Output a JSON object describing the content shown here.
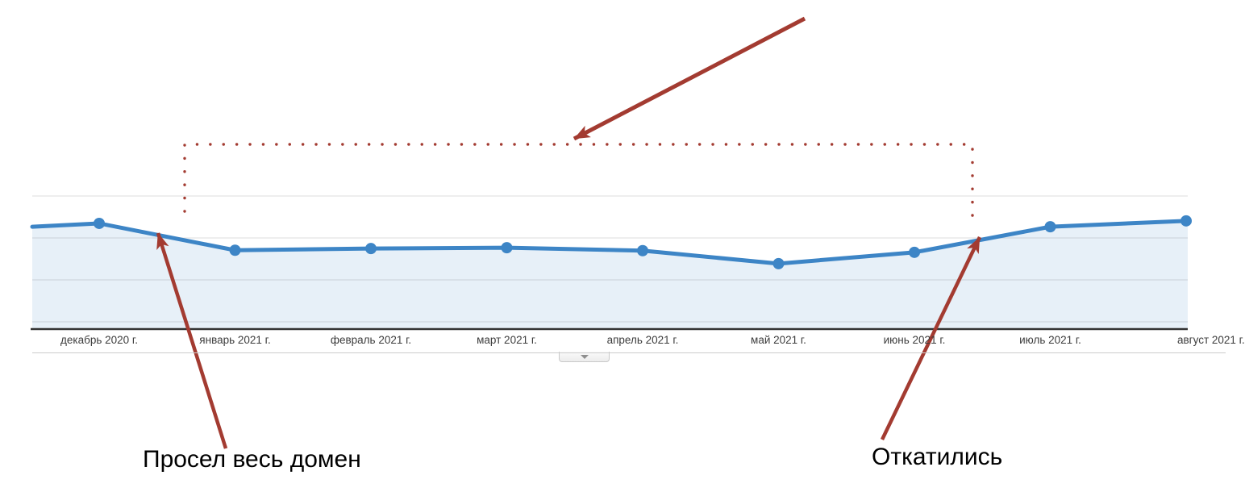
{
  "chart_data": {
    "type": "area",
    "title": "",
    "xlabel": "",
    "ylabel": "",
    "categories": [
      "декабрь 2020 г.",
      "январь 2021 г.",
      "февраль 2021 г.",
      "март 2021 г.",
      "апрель 2021 г.",
      "май 2021 г.",
      "июнь 2021 г.",
      "июль 2021 г.",
      "август 2021 г."
    ],
    "values": [
      2.52,
      1.88,
      1.92,
      1.94,
      1.87,
      1.56,
      1.83,
      2.44,
      2.58
    ],
    "left_edge_value": 2.44,
    "ylim": [
      0,
      4.4
    ],
    "grid": true,
    "legend": "none",
    "y_axis_ticks_visible": false,
    "unit_note": "y values estimated in gridline units; no y-axis tick labels are visible in the screenshot"
  },
  "colors": {
    "series_line": "#3d85c6",
    "series_fill": "rgba(61,133,198,0.12)",
    "annotation_red": "#a33b31",
    "axis_line": "#333333",
    "gridline": "#e4e4e4",
    "axis_label_text": "#3c3c3c",
    "annotation_text": "#000000"
  },
  "annotations": {
    "labels": [
      {
        "text": "Просел весь домен"
      },
      {
        "text": "Откатились"
      }
    ]
  },
  "controls": {
    "expander_icon": "chevron-down"
  }
}
